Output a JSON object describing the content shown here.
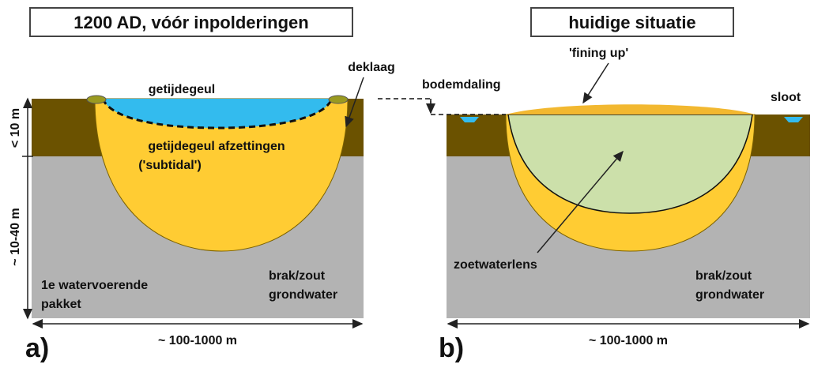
{
  "panel_a": {
    "title": "1200 AD, vóór inpolderingen",
    "letter": "a)",
    "labels": {
      "channel": "getijdegeul",
      "cover": "deklaag",
      "deposits_1": "getijdegeul afzettingen",
      "deposits_2": "('subtidal')",
      "aquifer_1": "1e watervoerende",
      "aquifer_2": "pakket",
      "water_1": "brak/zout",
      "water_2": "grondwater",
      "depth_top": "< 10 m",
      "depth_bottom": "~ 10-40 m",
      "width": "~ 100-1000 m"
    }
  },
  "panel_b": {
    "title": "huidige situatie",
    "letter": "b)",
    "labels": {
      "subsidence": "bodemdaling",
      "fining": "'fining up'",
      "ditch": "sloot",
      "lens": "zoetwaterlens",
      "water_1": "brak/zout",
      "water_2": "grondwater",
      "width": "~ 100-1000 m"
    }
  }
}
